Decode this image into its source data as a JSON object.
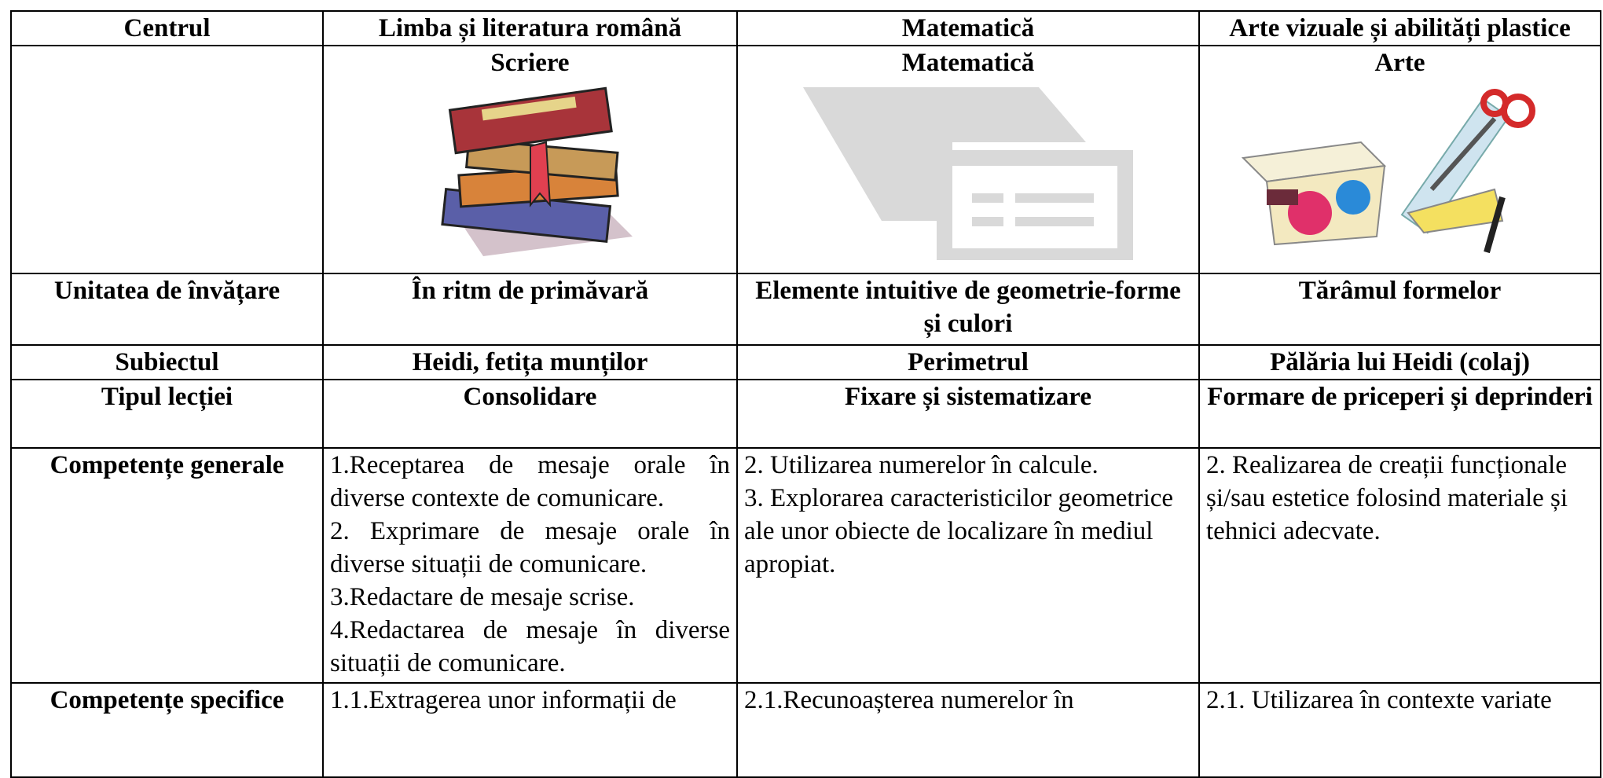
{
  "table": {
    "header": [
      "Centrul",
      "Limba și literatura română",
      "Matematică",
      "Arte vizuale și abilități plastice"
    ],
    "centers": [
      "Scriere",
      "Matematică",
      "Arte"
    ],
    "rows": [
      {
        "label": "Unitatea de învățare",
        "cells": [
          "În ritm de primăvară",
          "Elemente intuitive de geometrie-forme și culori",
          "Tărâmul formelor"
        ]
      },
      {
        "label": "Subiectul",
        "cells": [
          "Heidi, fetița munților",
          "Perimetrul",
          "Pălăria lui Heidi (colaj)"
        ]
      },
      {
        "label": "Tipul lecției",
        "cells": [
          "Consolidare",
          "Fixare și sistematizare",
          "Formare de priceperi și deprinderi"
        ]
      },
      {
        "label": "Competențe generale",
        "cells": [
          [
            "1.Receptarea de mesaje orale în diverse contexte de comunicare.",
            "2. Exprimare de mesaje orale în diverse situații de comunicare.",
            "3.Redactare de mesaje scrise.",
            "4.Redactarea de mesaje în diverse situații de comunicare."
          ],
          [
            "2. Utilizarea numerelor în calcule.",
            "3. Explorarea caracteristicilor geometrice ale unor obiecte de localizare în mediul apropiat."
          ],
          [
            "2. Realizarea de creații funcționale și/sau estetice folosind materiale și tehnici adecvate."
          ]
        ]
      },
      {
        "label": "Competențe specifice",
        "cells": [
          [
            "1.1.Extragerea unor informații de"
          ],
          [
            "2.1.Recunoașterea numerelor în"
          ],
          [
            "2.1. Utilizarea în contexte variate"
          ]
        ]
      }
    ]
  }
}
